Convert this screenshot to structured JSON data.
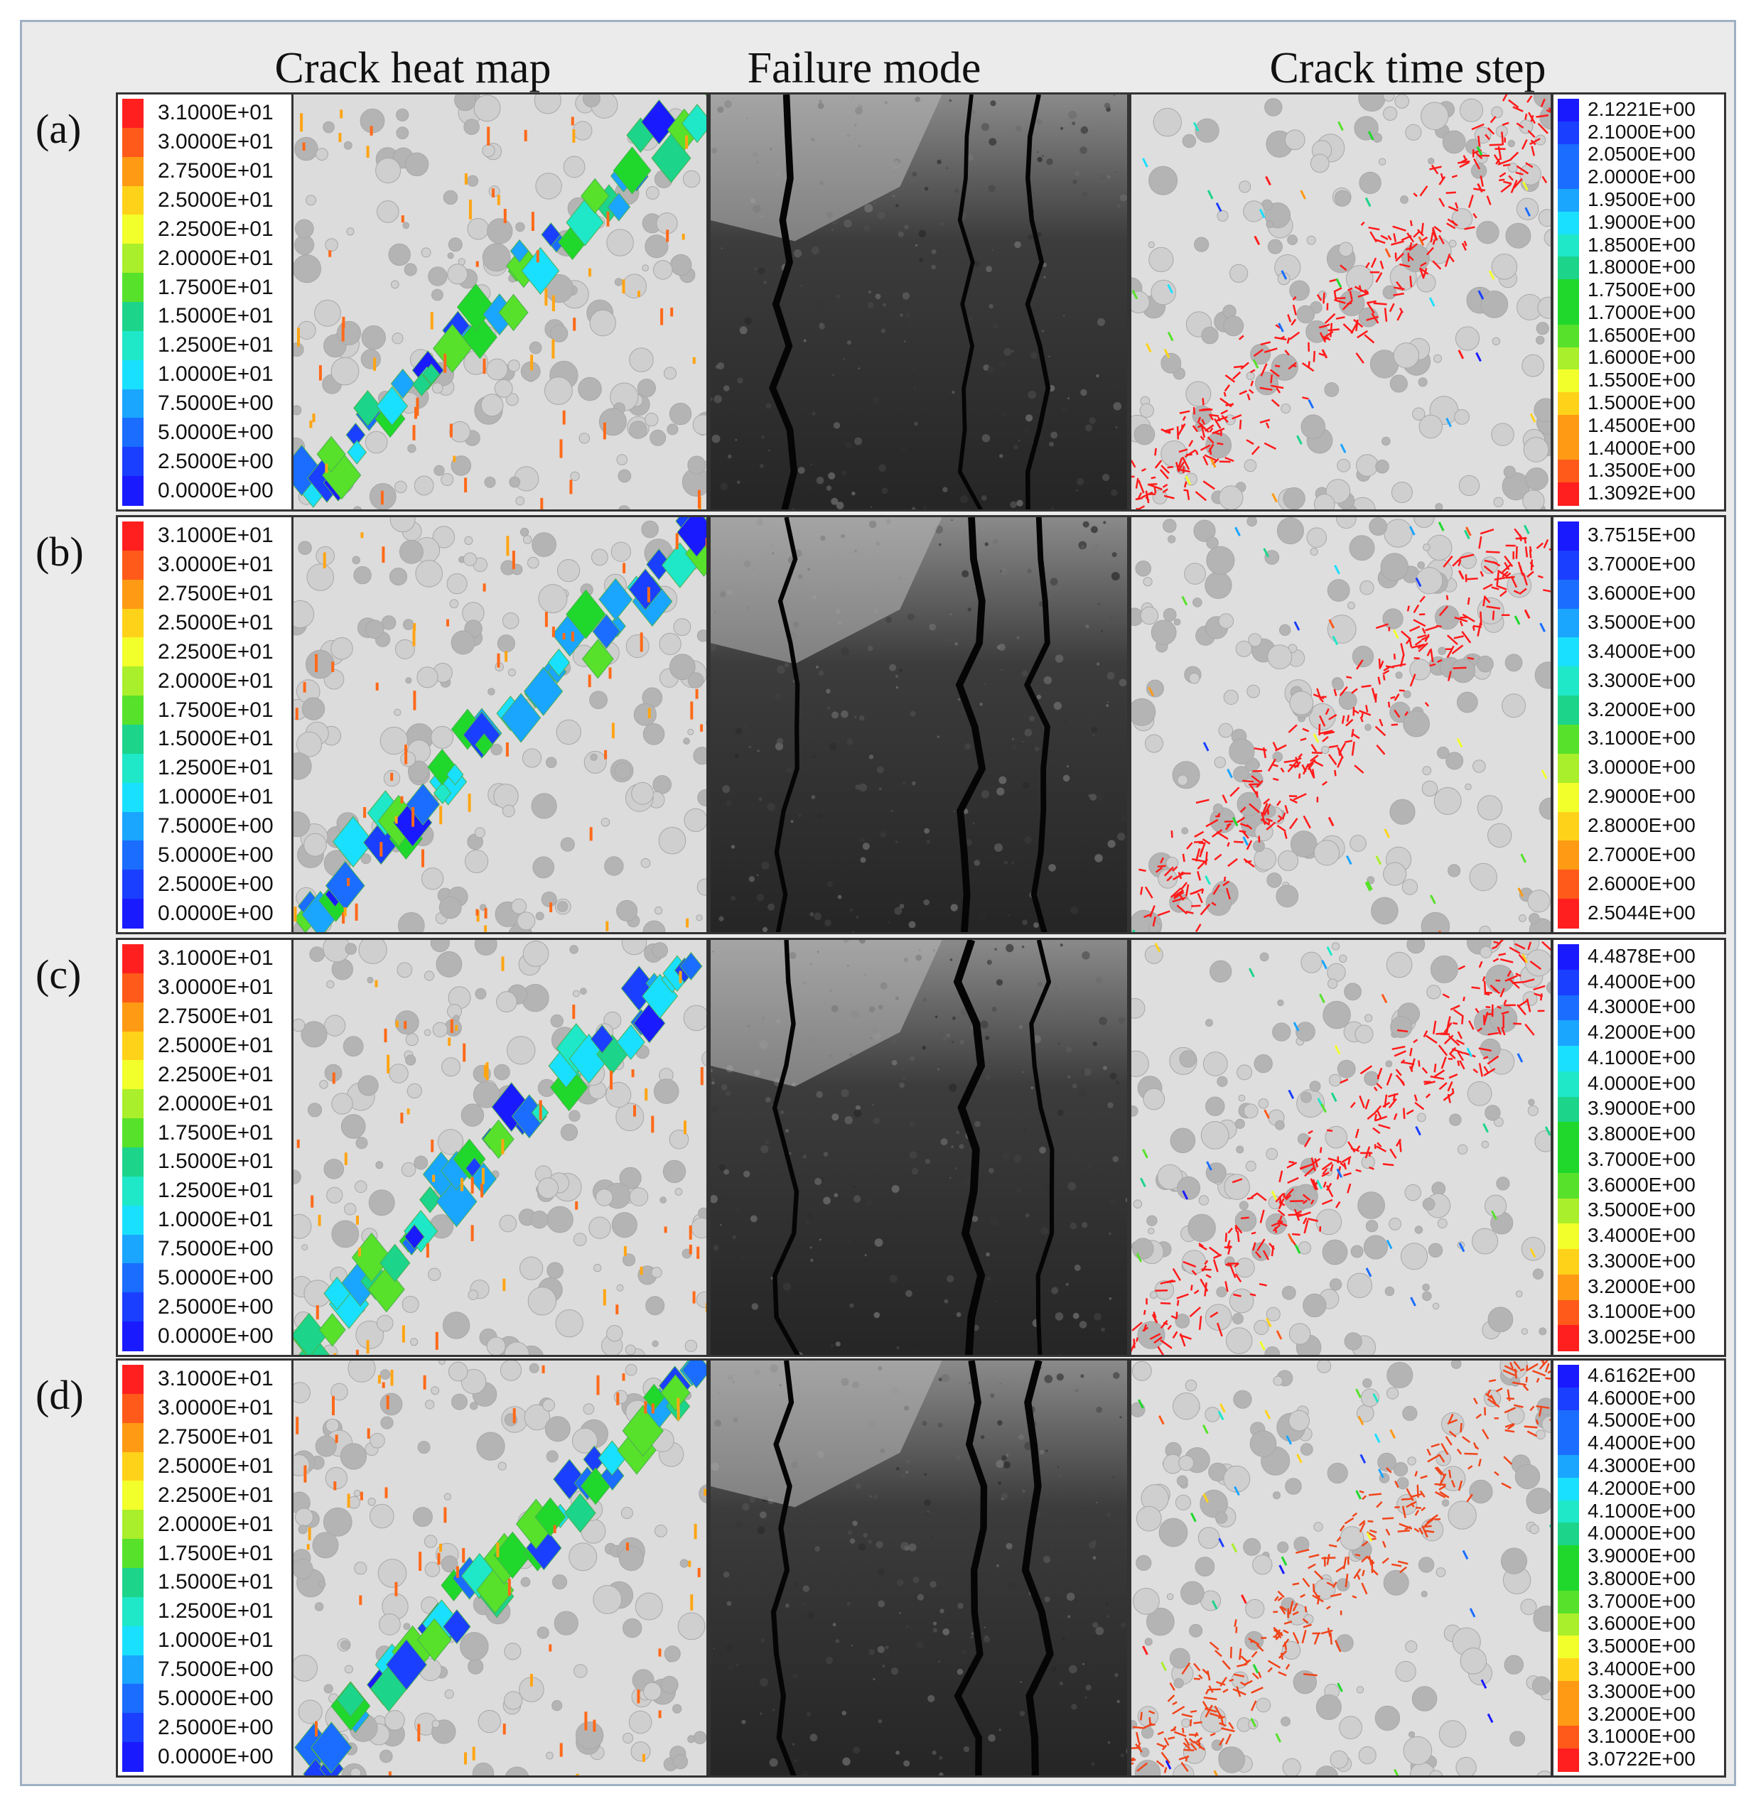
{
  "column_headers": [
    "Crack heat map",
    "Failure mode",
    "Crack time step"
  ],
  "heatmap_colorscale": [
    "#ff1f1f",
    "#ff5a1a",
    "#ff9a14",
    "#ffd21a",
    "#f2ff2a",
    "#a9ef2b",
    "#57e12b",
    "#1fd82b",
    "#1cd48a",
    "#1ee8c8",
    "#1ae0ff",
    "#1aa5ff",
    "#1a6dff",
    "#1a3fff",
    "#1a1aff"
  ],
  "rows": [
    {
      "label": "(a)",
      "heat_ticks": [
        "3.1000E+01",
        "3.0000E+01",
        "2.7500E+01",
        "2.5000E+01",
        "2.2500E+01",
        "2.0000E+01",
        "1.7500E+01",
        "1.5000E+01",
        "1.2500E+01",
        "1.0000E+01",
        "7.5000E+00",
        "5.0000E+00",
        "2.5000E+00",
        "0.0000E+00"
      ],
      "time_ticks": [
        "2.1221E+00",
        "2.1000E+00",
        "2.0500E+00",
        "2.0000E+00",
        "1.9500E+00",
        "1.9000E+00",
        "1.8500E+00",
        "1.8000E+00",
        "1.7500E+00",
        "1.7000E+00",
        "1.6500E+00",
        "1.6000E+00",
        "1.5500E+00",
        "1.5000E+00",
        "1.4500E+00",
        "1.4000E+00",
        "1.3500E+00",
        "1.3092E+00"
      ]
    },
    {
      "label": "(b)",
      "heat_ticks": [
        "3.1000E+01",
        "3.0000E+01",
        "2.7500E+01",
        "2.5000E+01",
        "2.2500E+01",
        "2.0000E+01",
        "1.7500E+01",
        "1.5000E+01",
        "1.2500E+01",
        "1.0000E+01",
        "7.5000E+00",
        "5.0000E+00",
        "2.5000E+00",
        "0.0000E+00"
      ],
      "time_ticks": [
        "3.7515E+00",
        "3.7000E+00",
        "3.6000E+00",
        "3.5000E+00",
        "3.4000E+00",
        "3.3000E+00",
        "3.2000E+00",
        "3.1000E+00",
        "3.0000E+00",
        "2.9000E+00",
        "2.8000E+00",
        "2.7000E+00",
        "2.6000E+00",
        "2.5044E+00"
      ]
    },
    {
      "label": "(c)",
      "heat_ticks": [
        "3.1000E+01",
        "3.0000E+01",
        "2.7500E+01",
        "2.5000E+01",
        "2.2500E+01",
        "2.0000E+01",
        "1.7500E+01",
        "1.5000E+01",
        "1.2500E+01",
        "1.0000E+01",
        "7.5000E+00",
        "5.0000E+00",
        "2.5000E+00",
        "0.0000E+00"
      ],
      "time_ticks": [
        "4.4878E+00",
        "4.4000E+00",
        "4.3000E+00",
        "4.2000E+00",
        "4.1000E+00",
        "4.0000E+00",
        "3.9000E+00",
        "3.8000E+00",
        "3.7000E+00",
        "3.6000E+00",
        "3.5000E+00",
        "3.4000E+00",
        "3.3000E+00",
        "3.2000E+00",
        "3.1000E+00",
        "3.0025E+00"
      ]
    },
    {
      "label": "(d)",
      "heat_ticks": [
        "3.1000E+01",
        "3.0000E+01",
        "2.7500E+01",
        "2.5000E+01",
        "2.2500E+01",
        "2.0000E+01",
        "1.7500E+01",
        "1.5000E+01",
        "1.2500E+01",
        "1.0000E+01",
        "7.5000E+00",
        "5.0000E+00",
        "2.5000E+00",
        "0.0000E+00"
      ],
      "time_ticks": [
        "4.6162E+00",
        "4.6000E+00",
        "4.5000E+00",
        "4.4000E+00",
        "4.3000E+00",
        "4.2000E+00",
        "4.1000E+00",
        "4.0000E+00",
        "3.9000E+00",
        "3.8000E+00",
        "3.7000E+00",
        "3.6000E+00",
        "3.5000E+00",
        "3.4000E+00",
        "3.3000E+00",
        "3.2000E+00",
        "3.1000E+00",
        "3.0722E+00"
      ]
    }
  ]
}
